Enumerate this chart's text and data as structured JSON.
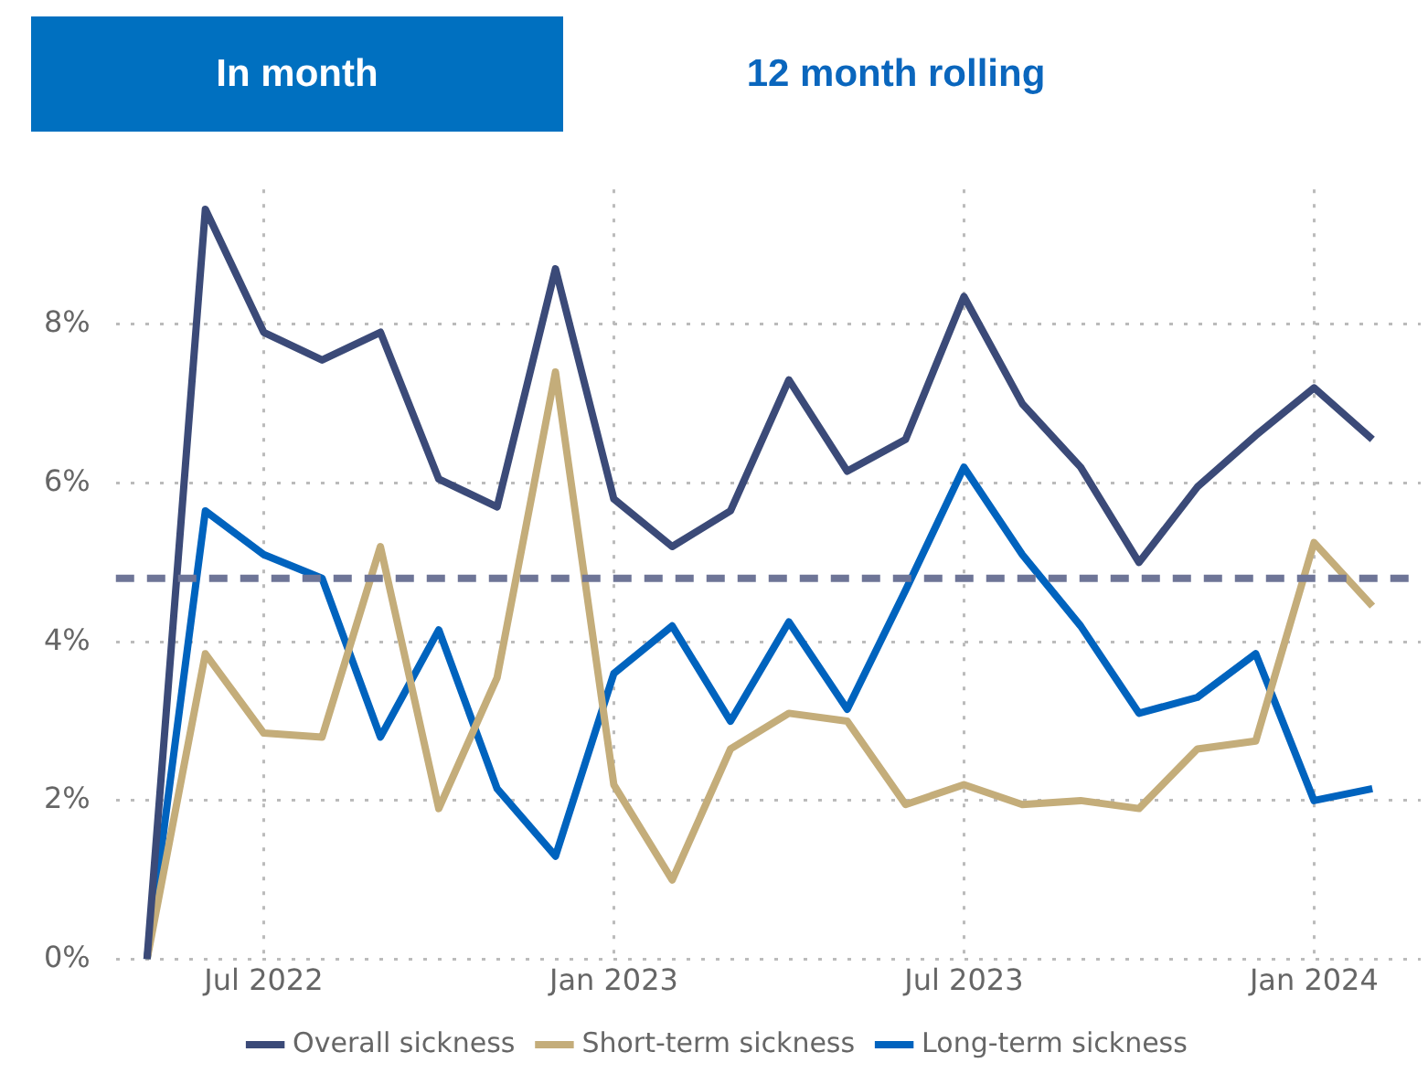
{
  "chart_data": {
    "type": "line",
    "annotations": [
      "In month",
      "12 month rolling"
    ],
    "x": [
      "2022-05",
      "2022-06",
      "2022-07",
      "2022-08",
      "2022-09",
      "2022-10",
      "2022-11",
      "2022-12",
      "2023-01",
      "2023-02",
      "2023-03",
      "2023-04",
      "2023-05",
      "2023-06",
      "2023-07",
      "2023-08",
      "2023-09",
      "2023-10",
      "2023-11",
      "2023-12",
      "2024-01",
      "2024-02"
    ],
    "series": [
      {
        "name": "Overall sickness",
        "color": "#3b4a78",
        "values": [
          0,
          9.45,
          7.9,
          7.55,
          7.9,
          6.05,
          5.7,
          8.7,
          5.8,
          5.2,
          5.65,
          7.3,
          6.15,
          6.55,
          8.35,
          7.0,
          6.2,
          5.0,
          5.95,
          6.6,
          7.2,
          6.55
        ]
      },
      {
        "name": "Short-term sickness",
        "color": "#c4ad7a",
        "values": [
          0,
          3.85,
          2.85,
          2.8,
          5.2,
          1.9,
          3.55,
          7.4,
          2.2,
          1.0,
          2.65,
          3.1,
          3.0,
          1.95,
          2.2,
          1.95,
          2.0,
          1.9,
          2.65,
          2.75,
          5.25,
          4.45
        ]
      },
      {
        "name": "Long-term sickness",
        "color": "#0063be",
        "values": [
          0,
          5.65,
          5.1,
          4.8,
          2.8,
          4.15,
          2.15,
          1.3,
          3.6,
          4.2,
          3.0,
          4.25,
          3.15,
          4.65,
          6.2,
          5.1,
          4.2,
          3.1,
          3.3,
          3.85,
          2.0,
          2.15
        ]
      }
    ],
    "xlim": [
      "2022-04-15",
      "2024-02-25"
    ],
    "xticks": [
      {
        "value": "2022-07",
        "label": "Jul 2022"
      },
      {
        "value": "2023-01",
        "label": "Jan 2023"
      },
      {
        "value": "2023-07",
        "label": "Jul 2023"
      },
      {
        "value": "2024-01",
        "label": "Jan 2024"
      }
    ],
    "ylim": [
      0,
      9.7
    ],
    "yticks": [
      {
        "value": 0,
        "label": "0%"
      },
      {
        "value": 2,
        "label": "2%"
      },
      {
        "value": 4,
        "label": "4%"
      },
      {
        "value": 6,
        "label": "6%"
      },
      {
        "value": 8,
        "label": "8%"
      }
    ],
    "ref_lines": [
      {
        "axis": "y",
        "value": 4.8,
        "color": "#6e7597",
        "line_style": "dashed"
      }
    ],
    "grid": true,
    "legend": "bottom",
    "marker": "none",
    "line_style": "solid"
  }
}
